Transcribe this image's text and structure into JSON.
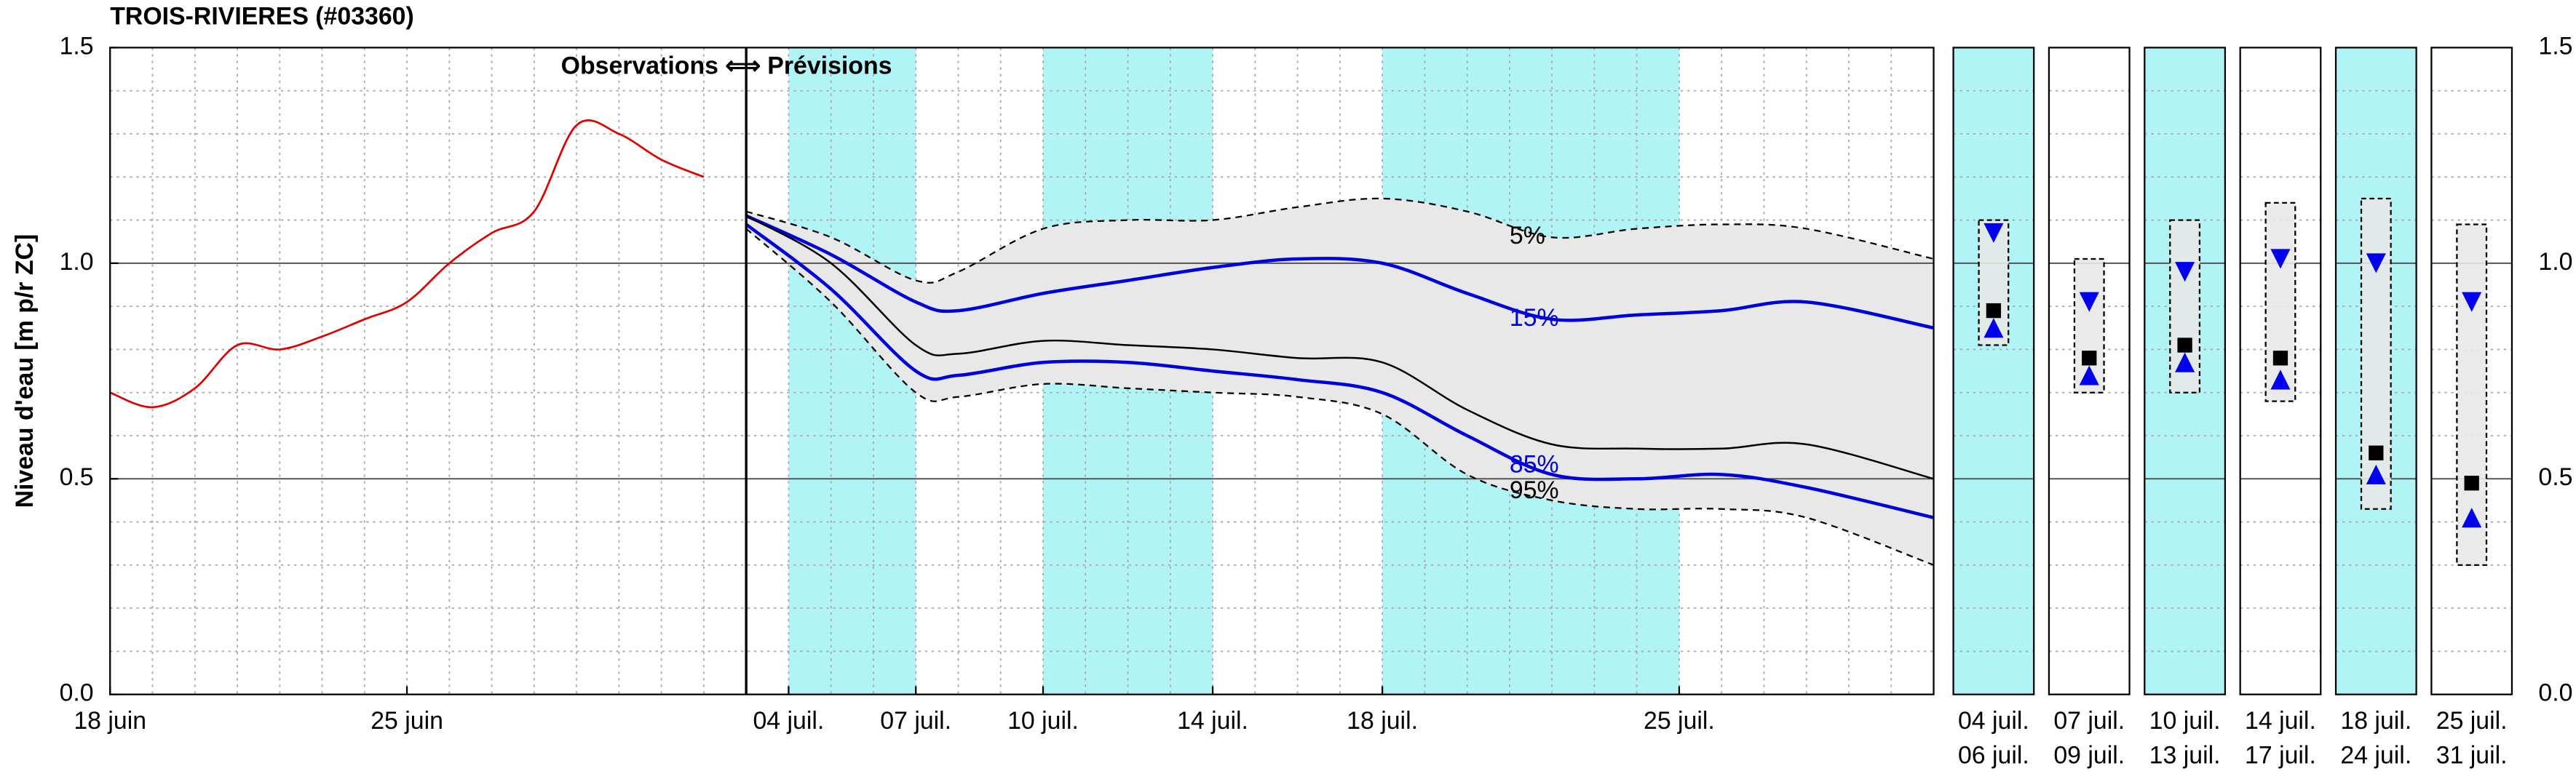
{
  "chart_data": {
    "type": "line",
    "title": "TROIS-RIVIERES (#03360)",
    "annotation": "Observations ⟺ Prévisions",
    "ylabel": "Niveau d'eau [m p/r ZC]",
    "xlim": [
      "06-18",
      "07-31"
    ],
    "xticks": [
      {
        "value": "06-18",
        "label": "18 juin"
      },
      {
        "value": "06-25",
        "label": "25 juin"
      },
      {
        "value": "07-04",
        "label": "04 juil."
      },
      {
        "value": "07-07",
        "label": "07 juil."
      },
      {
        "value": "07-10",
        "label": "10 juil."
      },
      {
        "value": "07-14",
        "label": "14 juil."
      },
      {
        "value": "07-18",
        "label": "18 juil."
      },
      {
        "value": "07-25",
        "label": "25 juil."
      }
    ],
    "ylim": [
      0,
      1.5
    ],
    "yticks": [
      {
        "value": 0,
        "label": "0.0"
      },
      {
        "value": 0.5,
        "label": "0.5"
      },
      {
        "value": 1,
        "label": "1.0"
      },
      {
        "value": 1.5,
        "label": "1.5"
      }
    ],
    "y_minor_ticks": [
      0.1,
      0.2,
      0.3,
      0.4,
      0.6,
      0.7,
      0.8,
      0.9,
      1.1,
      1.2,
      1.3,
      1.4
    ],
    "grid": true,
    "now": "07-03",
    "shade_color": "#b0f4f6",
    "shaded_periods": [
      {
        "start": "07-04",
        "end": "07-07"
      },
      {
        "start": "07-10",
        "end": "07-14"
      },
      {
        "start": "07-18",
        "end": "07-25"
      }
    ],
    "observed": {
      "color": "#e00000",
      "x": [
        "06-18",
        "06-19",
        "06-20",
        "06-21",
        "06-22",
        "06-23",
        "06-24",
        "06-25",
        "06-26",
        "06-27",
        "06-28",
        "06-29",
        "06-30",
        "07-01",
        "07-02"
      ],
      "values": [
        0.7,
        0.666,
        0.71,
        0.81,
        0.8,
        0.83,
        0.87,
        0.91,
        1.0,
        1.07,
        1.12,
        1.32,
        1.3,
        1.24,
        1.2
      ]
    },
    "band_color": "#e8e8e8",
    "forecast": {
      "x": [
        "07-03",
        "07-05",
        "07-07",
        "07-08",
        "07-10",
        "07-12",
        "07-14",
        "07-16",
        "07-18",
        "07-20",
        "07-22",
        "07-24",
        "07-26",
        "07-28",
        "07-31"
      ],
      "series": [
        {
          "color": "#000000",
          "dashed": true,
          "values": [
            1.12,
            1.06,
            0.96,
            0.98,
            1.08,
            1.1,
            1.1,
            1.13,
            1.15,
            1.12,
            1.06,
            1.08,
            1.09,
            1.08,
            1.01
          ]
        },
        {
          "color": "#0000dd",
          "dashed": false,
          "values": [
            1.11,
            1.02,
            0.91,
            0.89,
            0.93,
            0.96,
            0.99,
            1.01,
            1.0,
            0.93,
            0.87,
            0.88,
            0.89,
            0.91,
            0.85
          ]
        },
        {
          "color": "#000000",
          "dashed": false,
          "values": [
            1.11,
            1.0,
            0.81,
            0.79,
            0.82,
            0.81,
            0.8,
            0.78,
            0.77,
            0.66,
            0.58,
            0.57,
            0.57,
            0.58,
            0.5
          ]
        },
        {
          "color": "#0000dd",
          "dashed": false,
          "values": [
            1.09,
            0.94,
            0.75,
            0.74,
            0.77,
            0.77,
            0.75,
            0.73,
            0.7,
            0.6,
            0.51,
            0.5,
            0.51,
            0.48,
            0.41
          ]
        },
        {
          "color": "#000000",
          "dashed": true,
          "values": [
            1.08,
            0.91,
            0.7,
            0.69,
            0.72,
            0.71,
            0.7,
            0.69,
            0.65,
            0.51,
            0.45,
            0.43,
            0.43,
            0.41,
            0.3
          ]
        }
      ]
    },
    "annotations": [
      {
        "text": "5%",
        "x": "07-21",
        "y": 1.06,
        "color": "#000000"
      },
      {
        "text": "15%",
        "x": "07-21",
        "y": 0.87,
        "color": "#0000dd"
      },
      {
        "text": "85%",
        "x": "07-21",
        "y": 0.53,
        "color": "#0000dd"
      },
      {
        "text": "95%",
        "x": "07-21",
        "y": 0.47,
        "color": "#000000"
      }
    ],
    "marker_color": "#0000ee",
    "panels": [
      {
        "start_label": "04 juil.",
        "end_label": "06 juil.",
        "shaded": true,
        "low": 0.81,
        "high": 1.1,
        "down": 1.07,
        "square": 0.89,
        "up": 0.85
      },
      {
        "start_label": "07 juil.",
        "end_label": "09 juil.",
        "shaded": false,
        "low": 0.7,
        "high": 1.01,
        "down": 0.91,
        "square": 0.78,
        "up": 0.74
      },
      {
        "start_label": "10 juil.",
        "end_label": "13 juil.",
        "shaded": true,
        "low": 0.7,
        "high": 1.1,
        "down": 0.98,
        "square": 0.81,
        "up": 0.77
      },
      {
        "start_label": "14 juil.",
        "end_label": "17 juil.",
        "shaded": false,
        "low": 0.68,
        "high": 1.14,
        "down": 1.01,
        "square": 0.78,
        "up": 0.73
      },
      {
        "start_label": "18 juil.",
        "end_label": "24 juil.",
        "shaded": true,
        "low": 0.43,
        "high": 1.15,
        "down": 1.0,
        "square": 0.56,
        "up": 0.51
      },
      {
        "start_label": "25 juil.",
        "end_label": "31 juil.",
        "shaded": false,
        "low": 0.3,
        "high": 1.09,
        "down": 0.91,
        "square": 0.49,
        "up": 0.41
      }
    ]
  }
}
